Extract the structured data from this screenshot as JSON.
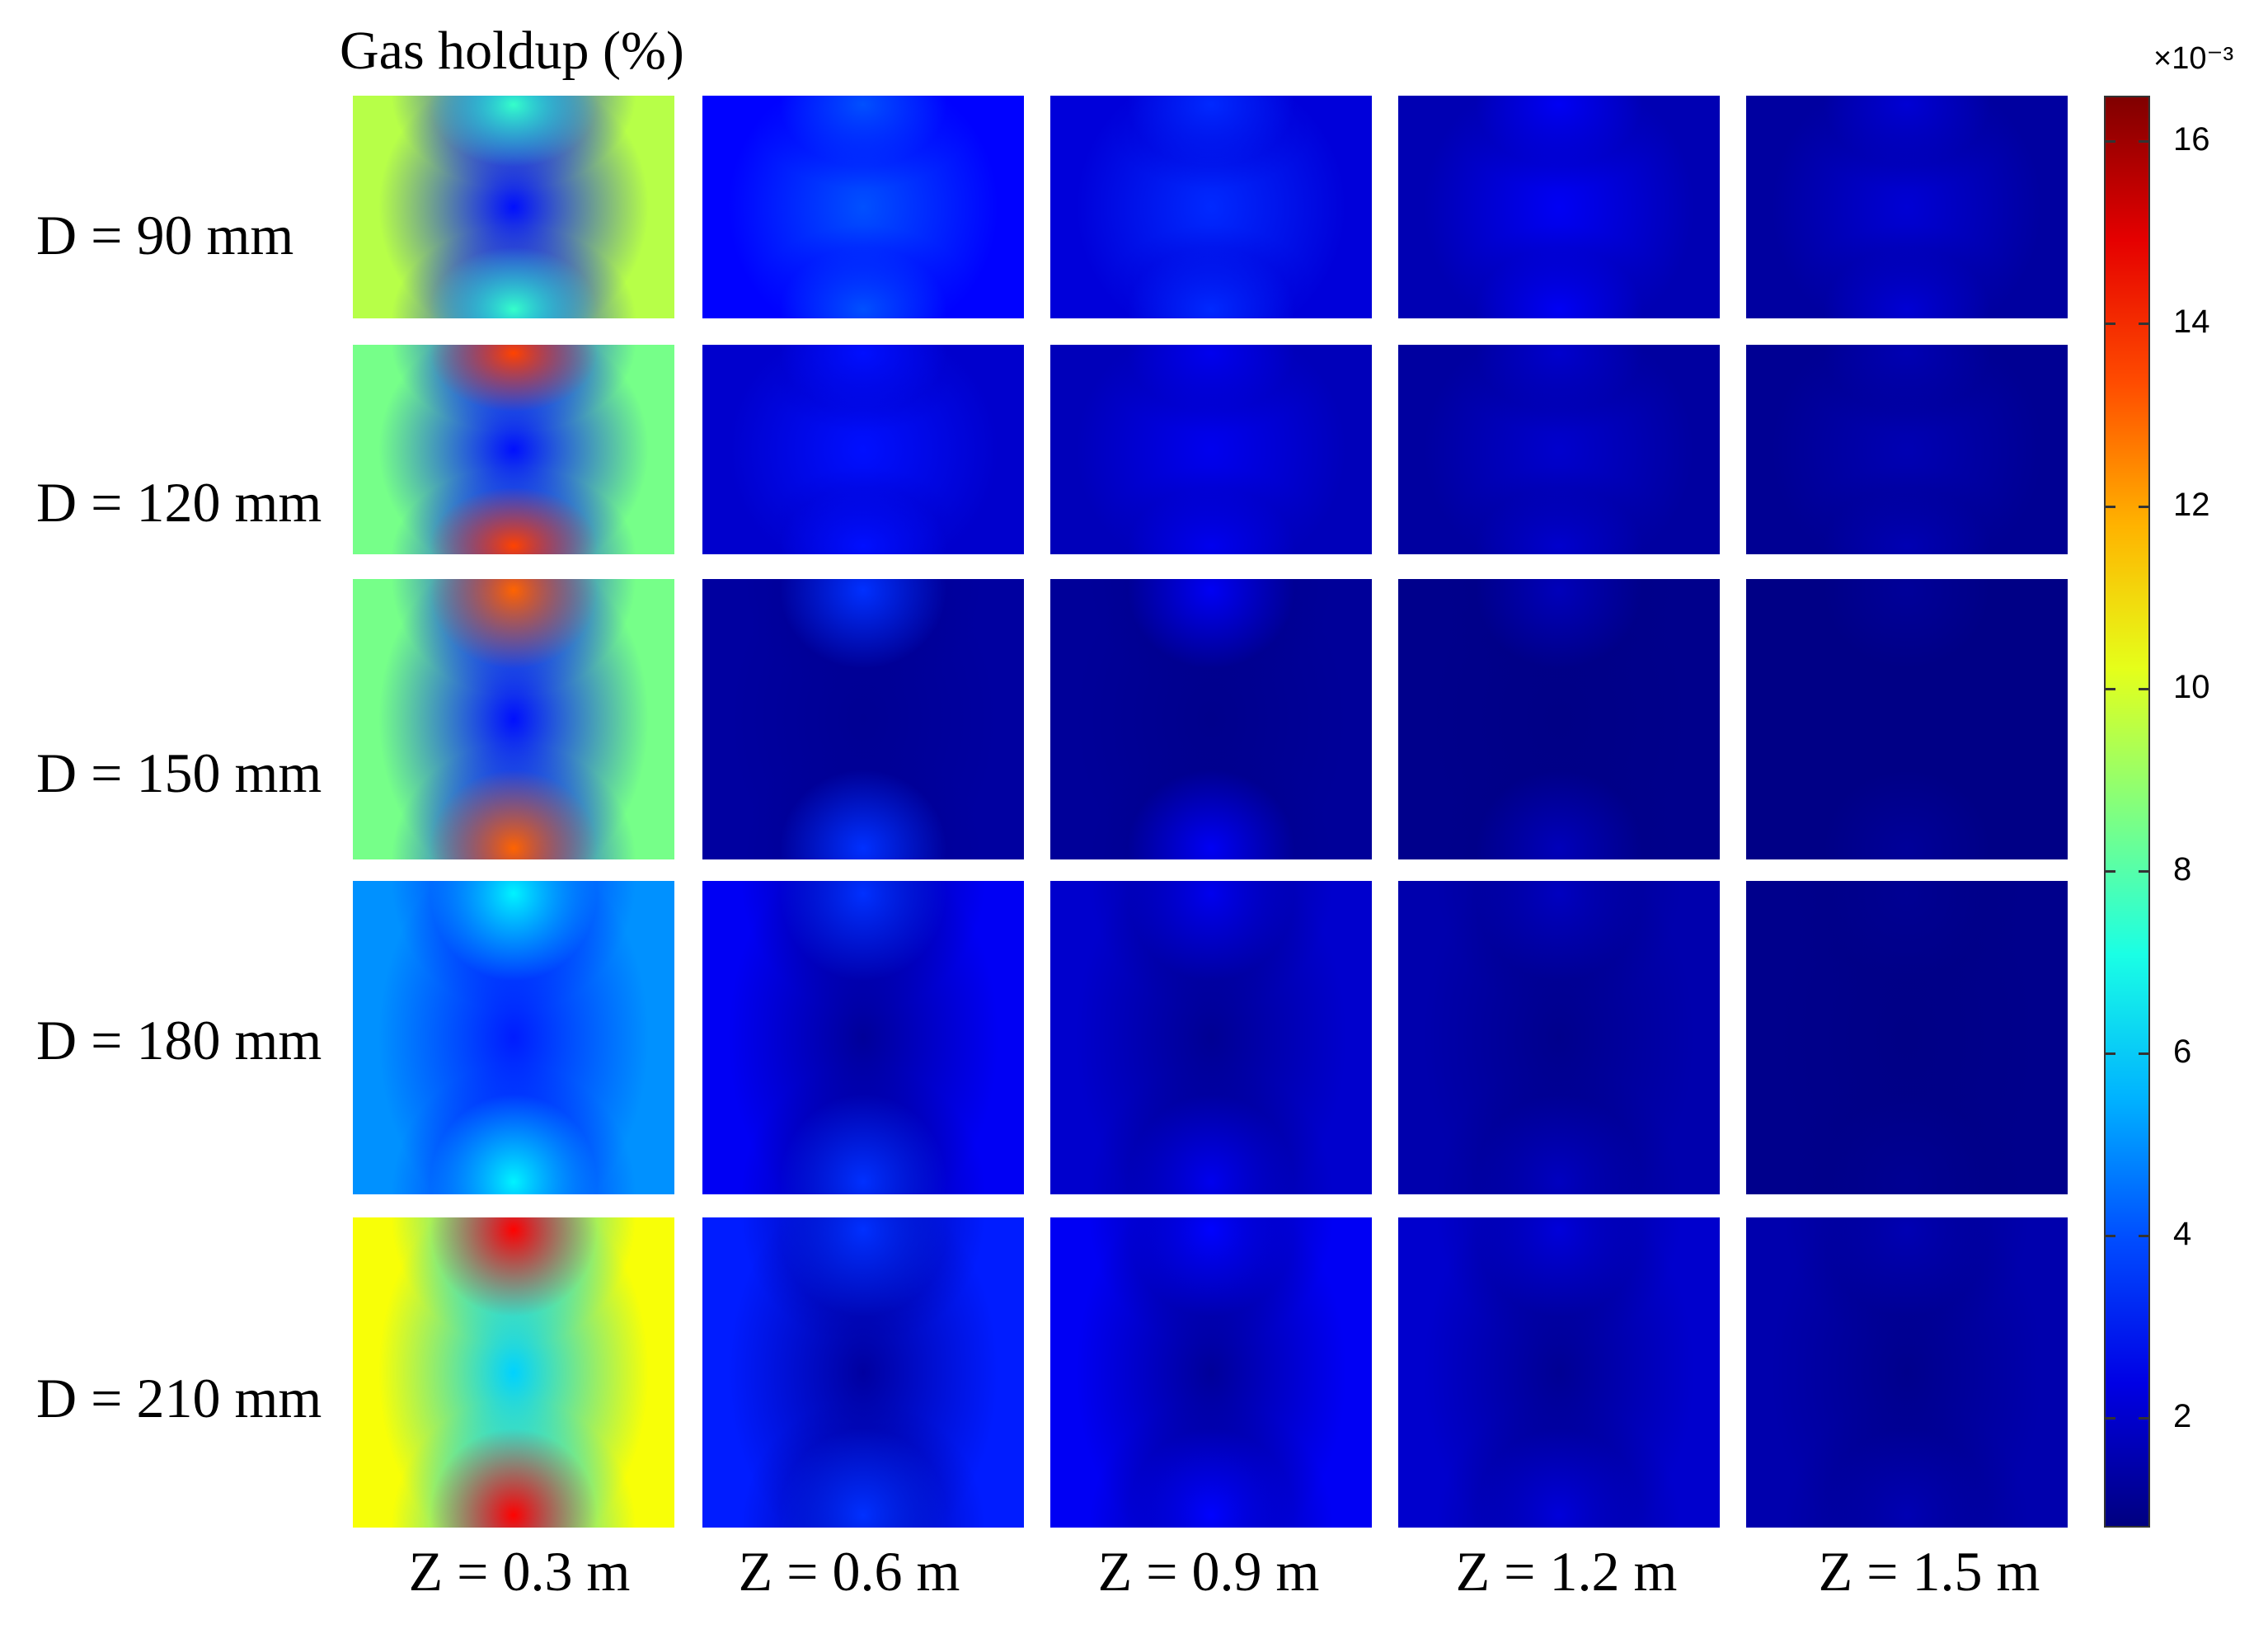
{
  "chart_data": {
    "type": "heatmap",
    "title": "Gas holdup (%)",
    "row_labels": [
      "D = 90 mm",
      "D = 120 mm",
      "D = 150 mm",
      "D = 180 mm",
      "D = 210 mm"
    ],
    "column_labels": [
      "Z = 0.3 m",
      "Z = 0.6 m",
      "Z = 0.9 m",
      "Z = 1.2 m",
      "Z = 1.5 m"
    ],
    "colorbar": {
      "colormap": "jet",
      "multiplier": "×10⁻³",
      "range": [
        0.8,
        16.5
      ],
      "ticks": [
        2,
        4,
        6,
        8,
        10,
        12,
        14,
        16
      ],
      "tick_labels": [
        "2",
        "4",
        "6",
        "8",
        "10",
        "12",
        "14",
        "16"
      ]
    },
    "panels": [
      [
        {
          "bg": 9.5,
          "center": 3.0,
          "peak": 7.5
        },
        {
          "bg": 2.8,
          "center": 4.0,
          "peak": 4.0
        },
        {
          "bg": 2.2,
          "center": 3.4,
          "peak": 3.4
        },
        {
          "bg": 1.6,
          "center": 2.6,
          "peak": 2.6
        },
        {
          "bg": 1.3,
          "center": 2.1,
          "peak": 2.1
        }
      ],
      [
        {
          "bg": 8.5,
          "center": 3.0,
          "peak": 13.5
        },
        {
          "bg": 2.0,
          "center": 3.0,
          "peak": 3.0
        },
        {
          "bg": 1.7,
          "center": 2.5,
          "peak": 2.5
        },
        {
          "bg": 1.3,
          "center": 2.0,
          "peak": 2.0
        },
        {
          "bg": 1.1,
          "center": 1.6,
          "peak": 1.6
        }
      ],
      [
        {
          "bg": 8.5,
          "center": 3.0,
          "peak": 13.0
        },
        {
          "bg": 1.3,
          "center": 1.1,
          "peak": 3.5
        },
        {
          "bg": 1.2,
          "center": 1.0,
          "peak": 2.6
        },
        {
          "bg": 1.0,
          "center": 0.9,
          "peak": 1.7
        },
        {
          "bg": 0.9,
          "center": 0.9,
          "peak": 1.2
        }
      ],
      [
        {
          "bg": 5.0,
          "center": 3.2,
          "peak": 6.5
        },
        {
          "bg": 2.6,
          "center": 1.2,
          "peak": 3.5
        },
        {
          "bg": 2.0,
          "center": 1.1,
          "peak": 2.5
        },
        {
          "bg": 1.5,
          "center": 1.0,
          "peak": 1.8
        },
        {
          "bg": 1.0,
          "center": 0.9,
          "peak": 1.1
        }
      ],
      [
        {
          "bg": 10.5,
          "center": 6.0,
          "peak": 14.5
        },
        {
          "bg": 3.2,
          "center": 1.3,
          "peak": 3.5
        },
        {
          "bg": 2.6,
          "center": 1.2,
          "peak": 2.8
        },
        {
          "bg": 2.0,
          "center": 1.1,
          "peak": 2.2
        },
        {
          "bg": 1.5,
          "center": 1.0,
          "peak": 1.6
        }
      ]
    ]
  }
}
